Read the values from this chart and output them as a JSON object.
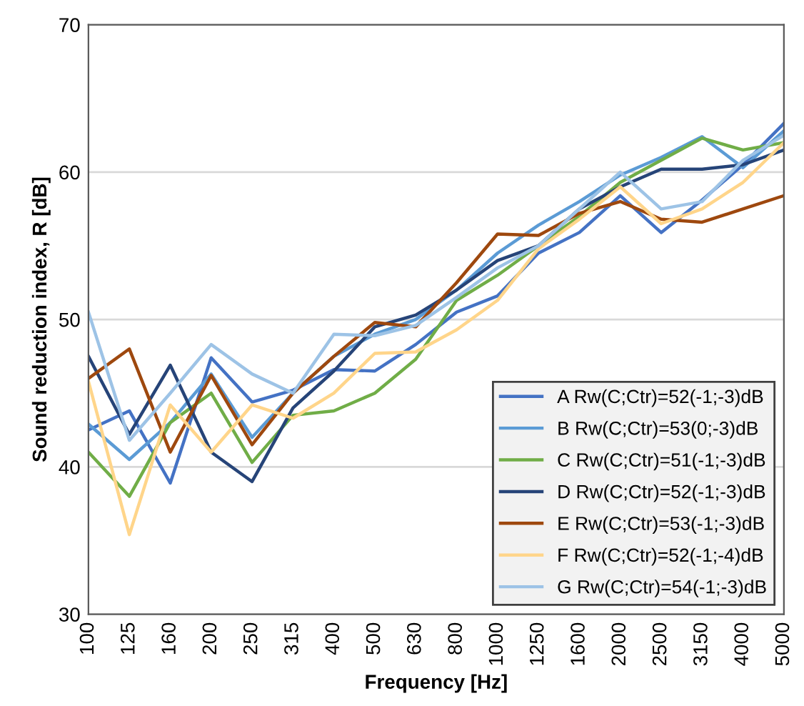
{
  "chart_data": {
    "type": "line",
    "xlabel": "Frequency [Hz]",
    "ylabel": "Sound reduction index, R [dB]",
    "categories": [
      "100",
      "125",
      "160",
      "200",
      "250",
      "315",
      "400",
      "500",
      "630",
      "800",
      "1000",
      "1250",
      "1600",
      "2000",
      "2500",
      "3150",
      "4000",
      "5000"
    ],
    "ylim": [
      30,
      70
    ],
    "yticks": [
      30,
      40,
      50,
      60,
      70
    ],
    "grid": "y",
    "legend": "bottom right",
    "marker": "none",
    "line_style": "solid",
    "series": [
      {
        "name": "A Rw(C;Ctr)=52(-1;-3)dB",
        "color": "#4472c4",
        "values": [
          42.5,
          43.8,
          38.9,
          47.4,
          44.4,
          45.2,
          46.6,
          46.5,
          48.3,
          50.5,
          51.6,
          54.5,
          55.9,
          58.4,
          55.9,
          58.1,
          60.5,
          63.3
        ]
      },
      {
        "name": "B Rw(C;Ctr)=53(0;-3)dB",
        "color": "#5b9bd5",
        "values": [
          42.9,
          40.5,
          43,
          46.3,
          42,
          45,
          47.5,
          49,
          50,
          52,
          54.5,
          56.4,
          58,
          59.8,
          61,
          62.4,
          60.3,
          62.8
        ]
      },
      {
        "name": "C Rw(C;Ctr)=51(-1;-3)dB",
        "color": "#70ad47",
        "values": [
          41,
          38,
          43,
          45,
          40.3,
          43.5,
          43.8,
          45,
          47.3,
          51.3,
          53,
          55,
          57,
          59.3,
          60.8,
          62.3,
          61.5,
          62
        ]
      },
      {
        "name": "D Rw(C;Ctr)=52(-1;-3)dB",
        "color": "#264478",
        "values": [
          47.5,
          42.2,
          46.9,
          41,
          39,
          44,
          46.5,
          49.5,
          50.3,
          52,
          54,
          55,
          57.5,
          59,
          60.2,
          60.2,
          60.5,
          61.5
        ]
      },
      {
        "name": "E Rw(C;Ctr)=53(-1;-3)dB",
        "color": "#9e480e",
        "values": [
          46,
          48,
          41,
          46.2,
          41.5,
          45,
          47.5,
          49.8,
          49.5,
          52.5,
          55.8,
          55.7,
          57.2,
          58,
          56.8,
          56.6,
          57.5,
          58.4
        ]
      },
      {
        "name": "F Rw(C;Ctr)=52(-1;-4)dB",
        "color": "#ffd58a",
        "values": [
          45.8,
          35.4,
          44.2,
          41,
          44.2,
          43.3,
          45,
          47.7,
          47.8,
          49.3,
          51.3,
          54.8,
          56.8,
          59,
          56.5,
          57.5,
          59.3,
          62
        ]
      },
      {
        "name": "G Rw(C;Ctr)=54(-1;-3)dB",
        "color": "#9dc3e6",
        "values": [
          50.5,
          41.8,
          45,
          48.3,
          46.3,
          45,
          49,
          48.9,
          49.6,
          51.5,
          53.5,
          55,
          57.5,
          60,
          57.5,
          58,
          60.8,
          62.5
        ]
      }
    ]
  }
}
